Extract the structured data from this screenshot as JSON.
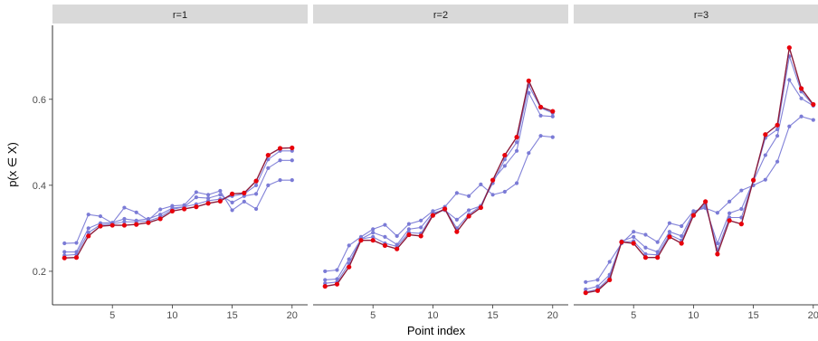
{
  "chart_data": {
    "type": "line",
    "facet_variable": "r",
    "xlabel": "Point index",
    "ylabel": "p(x ∈ X)",
    "x": [
      1,
      2,
      3,
      4,
      5,
      6,
      7,
      8,
      9,
      10,
      11,
      12,
      13,
      14,
      15,
      16,
      17,
      18,
      19,
      20
    ],
    "xticks": [
      5,
      10,
      15,
      20
    ],
    "yticks": [
      0.2,
      0.4,
      0.6
    ],
    "xlim": [
      0,
      21.3
    ],
    "ylim": [
      0.122,
      0.772
    ],
    "colors": {
      "highlight": "#e8000b",
      "highlight_line": "#8b1c3c",
      "other": "#7b7bd6"
    },
    "panels": [
      {
        "label": "r=1",
        "highlighted_series": [
          0.231,
          0.232,
          0.282,
          0.305,
          0.307,
          0.307,
          0.309,
          0.313,
          0.322,
          0.34,
          0.345,
          0.35,
          0.358,
          0.363,
          0.38,
          0.382,
          0.41,
          0.47,
          0.486,
          0.487
        ],
        "other_series": [
          [
            0.237,
            0.239,
            0.29,
            0.308,
            0.31,
            0.315,
            0.315,
            0.317,
            0.326,
            0.344,
            0.35,
            0.356,
            0.364,
            0.368,
            0.375,
            0.38,
            0.4,
            0.46,
            0.48,
            0.48
          ],
          [
            0.245,
            0.245,
            0.3,
            0.312,
            0.313,
            0.322,
            0.318,
            0.322,
            0.332,
            0.347,
            0.35,
            0.372,
            0.37,
            0.378,
            0.36,
            0.375,
            0.38,
            0.44,
            0.458,
            0.458
          ],
          [
            0.265,
            0.266,
            0.332,
            0.328,
            0.312,
            0.348,
            0.337,
            0.319,
            0.344,
            0.352,
            0.354,
            0.384,
            0.378,
            0.387,
            0.342,
            0.362,
            0.345,
            0.4,
            0.412,
            0.412
          ]
        ]
      },
      {
        "label": "r=2",
        "highlighted_series": [
          0.165,
          0.17,
          0.21,
          0.272,
          0.272,
          0.26,
          0.252,
          0.285,
          0.282,
          0.33,
          0.345,
          0.292,
          0.328,
          0.348,
          0.412,
          0.47,
          0.512,
          0.643,
          0.582,
          0.572
        ],
        "other_series": [
          [
            0.172,
            0.175,
            0.218,
            0.275,
            0.28,
            0.265,
            0.258,
            0.29,
            0.288,
            0.333,
            0.345,
            0.3,
            0.332,
            0.352,
            0.405,
            0.46,
            0.5,
            0.632,
            0.58,
            0.568
          ],
          [
            0.18,
            0.182,
            0.228,
            0.275,
            0.29,
            0.28,
            0.262,
            0.298,
            0.302,
            0.336,
            0.342,
            0.32,
            0.342,
            0.352,
            0.412,
            0.445,
            0.48,
            0.615,
            0.562,
            0.56
          ],
          [
            0.2,
            0.203,
            0.26,
            0.28,
            0.298,
            0.308,
            0.282,
            0.31,
            0.318,
            0.34,
            0.35,
            0.382,
            0.375,
            0.402,
            0.378,
            0.385,
            0.405,
            0.475,
            0.515,
            0.512
          ]
        ]
      },
      {
        "label": "r=3",
        "highlighted_series": [
          0.15,
          0.155,
          0.18,
          0.268,
          0.265,
          0.232,
          0.232,
          0.28,
          0.265,
          0.33,
          0.362,
          0.24,
          0.318,
          0.31,
          0.412,
          0.518,
          0.54,
          0.72,
          0.625,
          0.588
        ],
        "other_series": [
          [
            0.152,
            0.158,
            0.185,
            0.268,
            0.27,
            0.24,
            0.238,
            0.285,
            0.272,
            0.333,
            0.355,
            0.25,
            0.325,
            0.325,
            0.412,
            0.51,
            0.53,
            0.7,
            0.618,
            0.586
          ],
          [
            0.158,
            0.165,
            0.192,
            0.27,
            0.28,
            0.255,
            0.245,
            0.292,
            0.282,
            0.337,
            0.35,
            0.265,
            0.335,
            0.345,
            0.41,
            0.47,
            0.515,
            0.645,
            0.602,
            0.585
          ],
          [
            0.175,
            0.18,
            0.222,
            0.265,
            0.292,
            0.285,
            0.268,
            0.312,
            0.305,
            0.34,
            0.347,
            0.336,
            0.362,
            0.388,
            0.4,
            0.413,
            0.455,
            0.537,
            0.56,
            0.552
          ]
        ]
      }
    ]
  }
}
